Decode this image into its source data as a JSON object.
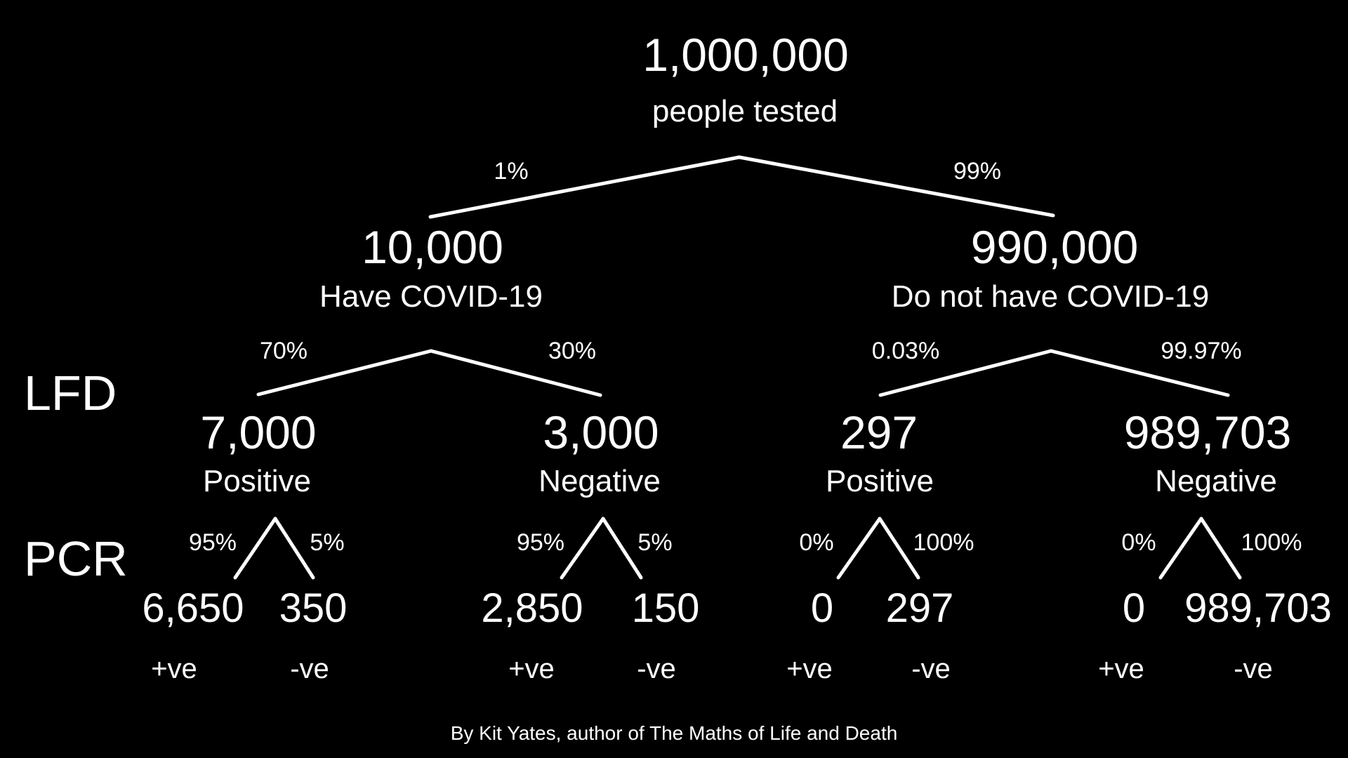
{
  "root": {
    "count": "1,000,000",
    "label": "people tested"
  },
  "level1": {
    "left": {
      "pct": "1%",
      "count": "10,000",
      "label": "Have COVID-19"
    },
    "right": {
      "pct": "99%",
      "count": "990,000",
      "label": "Do not have COVID-19"
    }
  },
  "stage_labels": {
    "lfd": "LFD",
    "pcr": "PCR"
  },
  "lfd": [
    {
      "pct": "70%",
      "count": "7,000",
      "label": "Positive"
    },
    {
      "pct": "30%",
      "count": "3,000",
      "label": "Negative"
    },
    {
      "pct": "0.03%",
      "count": "297",
      "label": "Positive"
    },
    {
      "pct": "99.97%",
      "count": "989,703",
      "label": "Negative"
    }
  ],
  "pcr": [
    {
      "pos_pct": "95%",
      "neg_pct": "5%",
      "pos_count": "6,650",
      "neg_count": "350",
      "pos_label": "+ve",
      "neg_label": "-ve"
    },
    {
      "pos_pct": "95%",
      "neg_pct": "5%",
      "pos_count": "2,850",
      "neg_count": "150",
      "pos_label": "+ve",
      "neg_label": "-ve"
    },
    {
      "pos_pct": "0%",
      "neg_pct": "100%",
      "pos_count": "0",
      "neg_count": "297",
      "pos_label": "+ve",
      "neg_label": "-ve"
    },
    {
      "pos_pct": "0%",
      "neg_pct": "100%",
      "pos_count": "0",
      "neg_count": "989,703",
      "pos_label": "+ve",
      "neg_label": "-ve"
    }
  ],
  "credit": "By Kit Yates, author of The Maths of Life and Death"
}
